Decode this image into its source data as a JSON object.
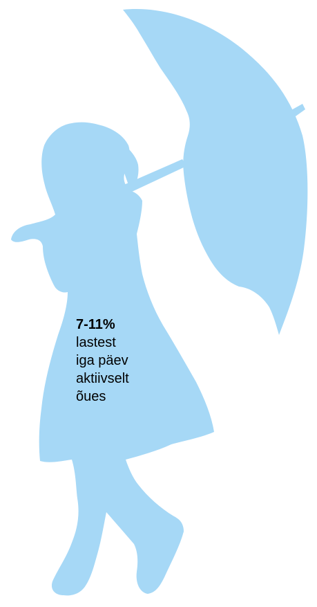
{
  "infographic": {
    "silhouette_color": "#a6d8f6",
    "background_color": "#ffffff",
    "text_color": "#000000",
    "icon": "girl-with-umbrella-silhouette",
    "stat": {
      "value": "7-11%",
      "lines": [
        "lastest",
        "iga päev",
        "aktiivselt",
        "õues"
      ]
    }
  }
}
